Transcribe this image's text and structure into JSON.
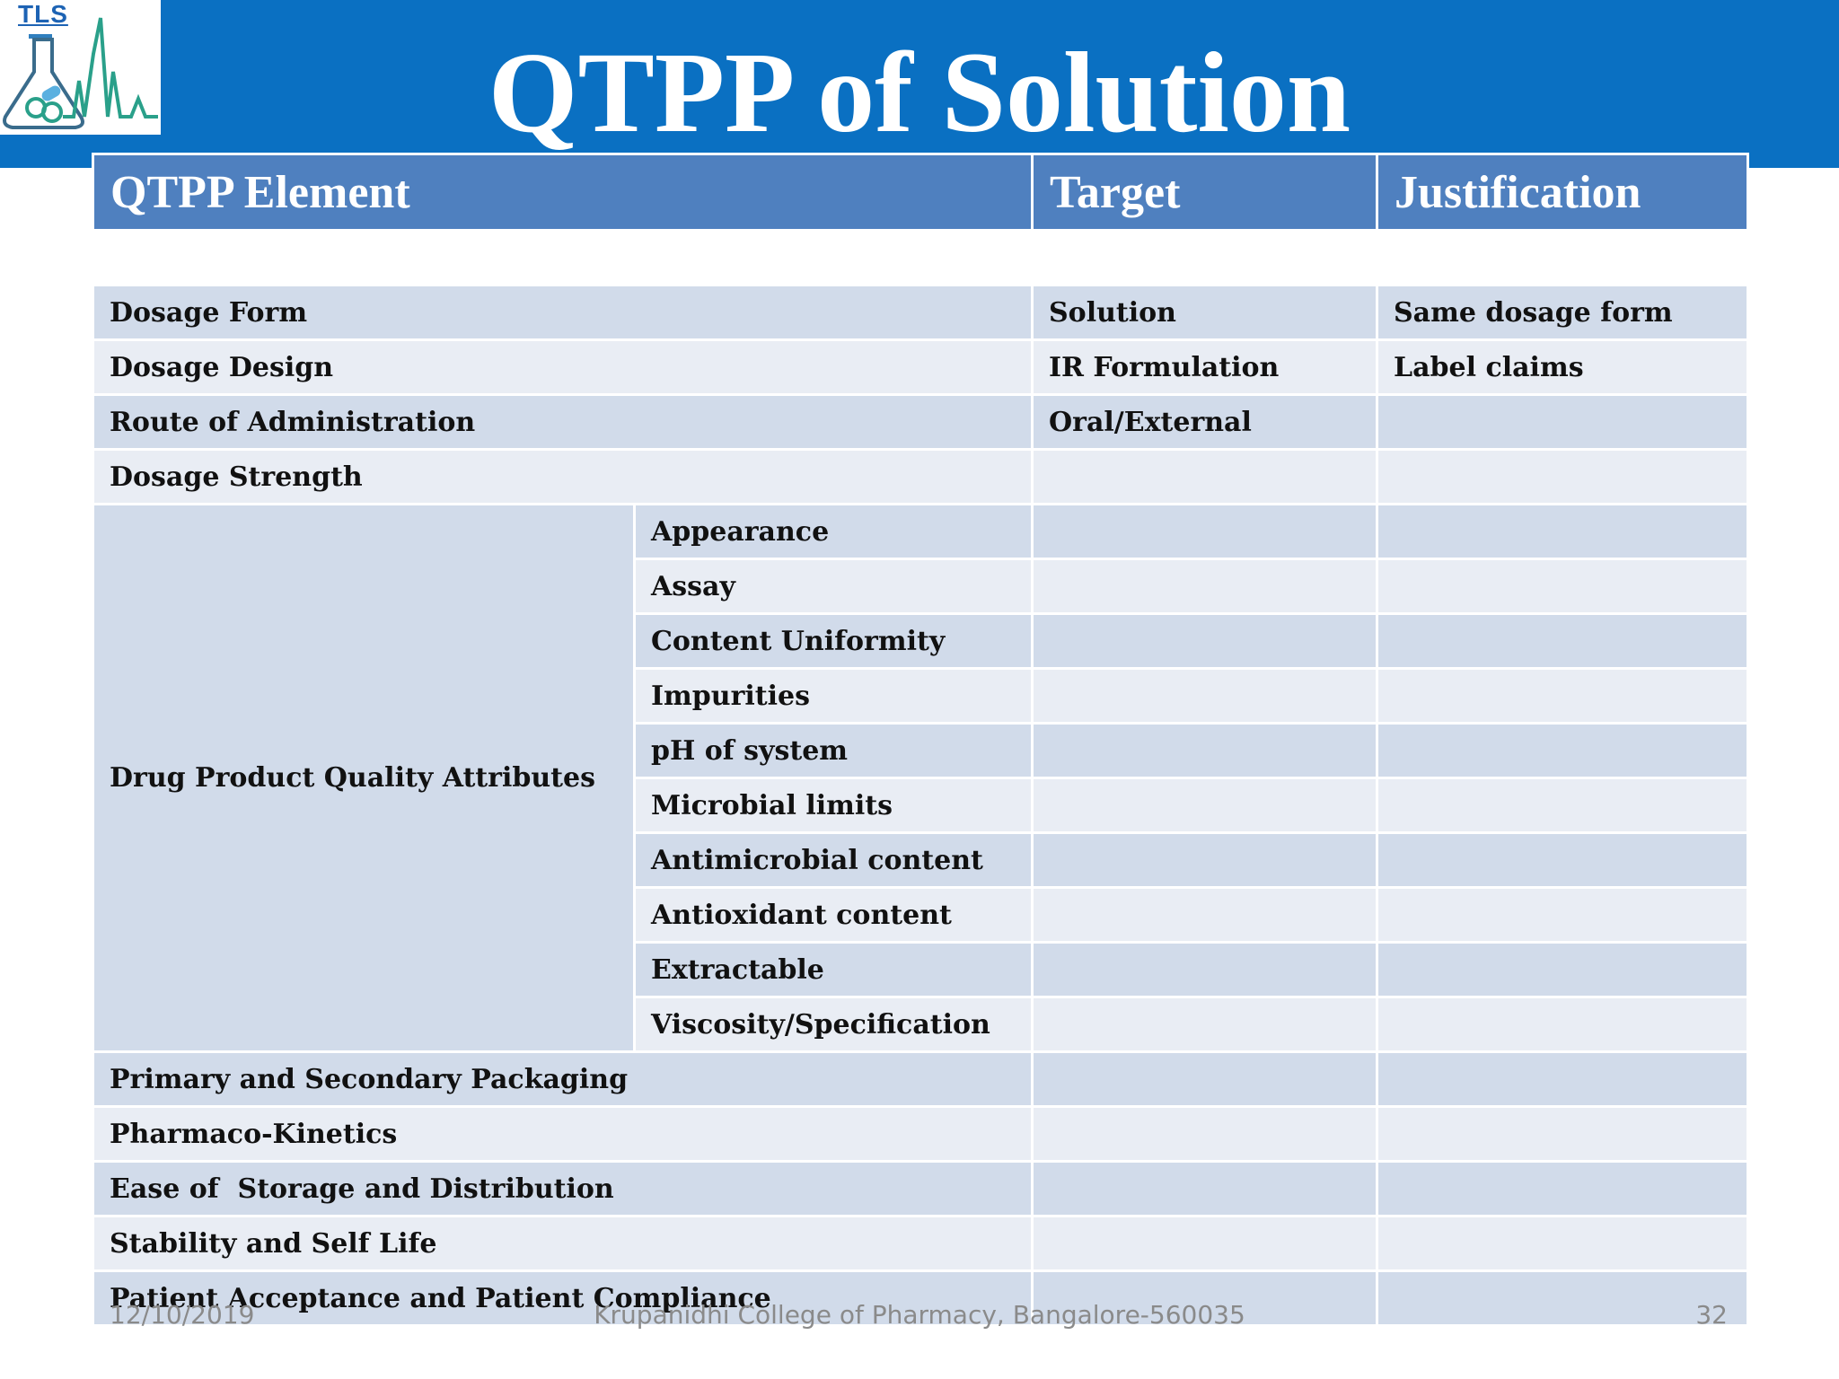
{
  "logo": {
    "text": "TLS"
  },
  "title": "QTPP of Solution",
  "table": {
    "headers": [
      "QTPP Element",
      "Target",
      "Justification"
    ],
    "rows_before": [
      {
        "element": "Dosage Form",
        "target": "Solution",
        "justification": "Same dosage form"
      },
      {
        "element": "Dosage Design",
        "target": "IR Formulation",
        "justification": "Label claims"
      },
      {
        "element": "Route of Administration",
        "target": "Oral/External",
        "justification": ""
      },
      {
        "element": "Dosage Strength",
        "target": "",
        "justification": ""
      }
    ],
    "group": {
      "label": "Drug Product Quality Attributes",
      "attributes": [
        {
          "name": "Appearance",
          "target": "",
          "justification": ""
        },
        {
          "name": "Assay",
          "target": "",
          "justification": ""
        },
        {
          "name": "Content Uniformity",
          "target": "",
          "justification": ""
        },
        {
          "name": "Impurities",
          "target": "",
          "justification": ""
        },
        {
          "name": "pH of system",
          "target": "",
          "justification": ""
        },
        {
          "name": "Microbial limits",
          "target": "",
          "justification": ""
        },
        {
          "name": "Antimicrobial content",
          "target": "",
          "justification": ""
        },
        {
          "name": "Antioxidant content",
          "target": "",
          "justification": ""
        },
        {
          "name": "Extractable",
          "target": "",
          "justification": ""
        },
        {
          "name": "Viscosity/Specification",
          "target": "",
          "justification": ""
        }
      ]
    },
    "rows_after": [
      {
        "element": "Primary and Secondary Packaging",
        "target": "",
        "justification": ""
      },
      {
        "element": "Pharmaco-Kinetics",
        "target": "",
        "justification": ""
      },
      {
        "element": "Ease of  Storage and Distribution",
        "target": "",
        "justification": ""
      },
      {
        "element": "Stability and Self Life",
        "target": "",
        "justification": ""
      },
      {
        "element": "Patient Acceptance and Patient Compliance",
        "target": "",
        "justification": ""
      }
    ]
  },
  "footer": {
    "date": "12/10/2019",
    "institution": "Krupanidhi College of Pharmacy, Bangalore-560035",
    "page_number": "32"
  },
  "colors": {
    "header_band": "#0a70c2",
    "table_header": "#4f80bf",
    "row_dark": "#d1dbea",
    "row_light": "#e9edf4"
  }
}
